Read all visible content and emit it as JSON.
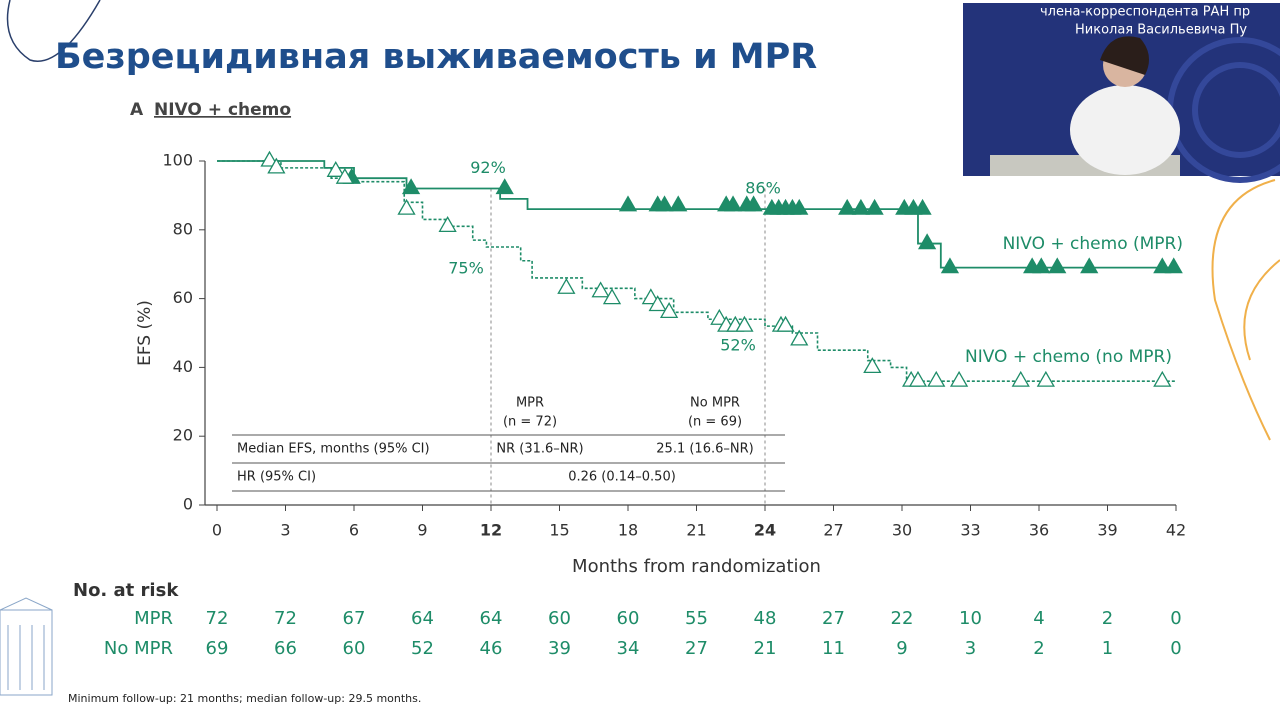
{
  "slide": {
    "title": "Безрецидивная выживаемость и MPR",
    "panel": "A",
    "panel_title": "NIVO + chemo",
    "footnote": "Minimum follow-up: 21 months; median follow-up: 29.5 months.",
    "video_overlay_text": [
      "члена-корреспондента РАН пр",
      "Николая Васильевича Пу"
    ]
  },
  "chart_data": {
    "type": "line",
    "step": true,
    "x_label": "Months from randomization",
    "y_label": "EFS (%)",
    "xlim": [
      0,
      42
    ],
    "ylim": [
      0,
      100
    ],
    "xticks": [
      0,
      3,
      6,
      9,
      12,
      15,
      18,
      21,
      24,
      27,
      30,
      33,
      36,
      39,
      42
    ],
    "yticks": [
      0,
      20,
      40,
      60,
      80,
      100
    ],
    "reference_x": [
      12,
      24
    ],
    "series": [
      {
        "name": "NIVO + chemo (MPR)",
        "color": "#1e8c68",
        "dashed": false,
        "censor_filled": true,
        "x": [
          0,
          4.7,
          4.7,
          6,
          6,
          8.3,
          8.3,
          12.4,
          12.4,
          13.6,
          13.6,
          30.7,
          30.7,
          31.7,
          31.7,
          42
        ],
        "values": [
          100,
          100,
          98,
          98,
          95,
          95,
          92,
          92,
          89,
          89,
          86,
          86,
          76,
          76,
          69,
          69
        ],
        "censor_x": [
          5.9,
          8.5,
          12.6,
          18,
          19.3,
          19.6,
          20.2,
          22.3,
          22.6,
          23.2,
          23.5,
          24.3,
          24.6,
          24.9,
          25.2,
          25.5,
          27.6,
          28.2,
          28.8,
          30.1,
          30.5,
          30.9,
          31.1,
          32.1,
          35.7,
          36.1,
          36.8,
          38.2,
          41.4,
          41.9
        ],
        "censor_y": [
          95,
          92,
          92,
          87,
          87,
          87,
          87,
          87,
          87,
          87,
          87,
          86,
          86,
          86,
          86,
          86,
          86,
          86,
          86,
          86,
          86,
          86,
          76,
          69,
          69,
          69,
          69,
          69,
          69,
          69
        ]
      },
      {
        "name": "NIVO + chemo (no MPR)",
        "color": "#1e8c68",
        "dashed": true,
        "censor_filled": false,
        "x": [
          0,
          2.8,
          2.8,
          5,
          5,
          6,
          6,
          8.2,
          8.2,
          9,
          9,
          10,
          10,
          11.2,
          11.2,
          11.8,
          11.8,
          13.3,
          13.3,
          13.8,
          13.8,
          16,
          16,
          18.3,
          18.3,
          20,
          20,
          21.5,
          21.5,
          24,
          24,
          25.2,
          25.2,
          26.3,
          26.3,
          28.5,
          28.5,
          29.5,
          29.5,
          30.2,
          30.2,
          42
        ],
        "values": [
          100,
          100,
          98,
          98,
          95,
          95,
          94,
          94,
          88,
          88,
          83,
          83,
          81,
          81,
          77,
          77,
          75,
          75,
          71,
          71,
          66,
          66,
          63,
          63,
          60,
          60,
          56,
          56,
          54,
          54,
          52,
          52,
          50,
          50,
          45,
          45,
          42,
          42,
          40,
          40,
          36,
          36
        ],
        "censor_x": [
          2.3,
          2.6,
          5.2,
          5.6,
          8.3,
          10.1,
          15.3,
          16.8,
          17.3,
          19,
          19.3,
          19.8,
          22,
          22.3,
          22.7,
          23.1,
          24.7,
          24.9,
          25.5,
          28.7,
          30.4,
          30.7,
          31.5,
          32.5,
          35.2,
          36.3,
          41.4
        ],
        "censor_y": [
          100,
          98,
          97,
          95,
          86,
          81,
          63,
          62,
          60,
          60,
          58,
          56,
          54,
          52,
          52,
          52,
          52,
          52,
          48,
          40,
          36,
          36,
          36,
          36,
          36,
          36,
          36
        ]
      }
    ],
    "annotations": [
      {
        "x": 12,
        "value": 92,
        "label": "92%"
      },
      {
        "x": 24,
        "value": 86,
        "label": "86%"
      },
      {
        "x": 12,
        "value": 75,
        "label": "75%"
      },
      {
        "x": 24,
        "value": 52,
        "label": "52%"
      }
    ],
    "summary_table": {
      "headers": [
        [
          "MPR",
          "(n = 72)"
        ],
        [
          "No MPR",
          "(n = 69)"
        ]
      ],
      "rows": [
        [
          "Median EFS, months (95% CI)",
          "NR (31.6–NR)",
          "25.1 (16.6–NR)"
        ],
        [
          "HR (95% CI)",
          "0.26 (0.14–0.50)"
        ]
      ]
    },
    "risk_table": {
      "title": "No. at risk",
      "rows": [
        {
          "label": "MPR",
          "values": [
            72,
            72,
            67,
            64,
            64,
            60,
            60,
            55,
            48,
            27,
            22,
            10,
            4,
            2,
            0
          ]
        },
        {
          "label": "No MPR",
          "values": [
            69,
            66,
            60,
            52,
            46,
            39,
            34,
            27,
            21,
            11,
            9,
            3,
            2,
            1,
            0
          ]
        }
      ]
    }
  }
}
